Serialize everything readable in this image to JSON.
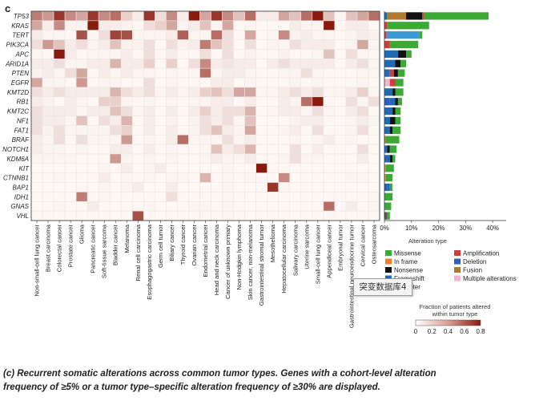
{
  "panel_label": "c",
  "colors": {
    "heat_max": "#8a1a0e",
    "grid_line": "#e8e8e8",
    "Missense": "#3aaa35",
    "In frame": "#f08030",
    "Nonsense": "#111111",
    "Frameshift": "#1e6bb8",
    "Amplification": "#d23c3c",
    "Deletion": "#2a60c0",
    "Fusion": "#b07a2a",
    "Promoter": "#3a9ad8",
    "Multiple alterations": "#f2b6cc",
    "VHL_bar": "#555555"
  },
  "chart_data": [
    {
      "type": "heatmap",
      "rows": [
        "TP53",
        "KRAS",
        "TERT",
        "PIK3CA",
        "APC",
        "ARID1A",
        "PTEN",
        "EGFR",
        "KMT2D",
        "RB1",
        "KMT2C",
        "NF1",
        "FAT1",
        "BRAF",
        "NOTCH1",
        "KDM6A",
        "KIT",
        "CTNNB1",
        "BAP1",
        "IDH1",
        "GNAS",
        "VHL"
      ],
      "columns": [
        "Non-small-cell lung cancer",
        "Breast carcinoma",
        "Colorectal cancer",
        "Prostate cancer",
        "Glioma",
        "Pancreatic cancer",
        "Soft-tissue sarcoma",
        "Bladder cancer",
        "Melanoma",
        "Renal cell carcinoma",
        "Esophagogastric carcinoma",
        "Germ cell tumor",
        "Biliary cancer",
        "Thyroid cancer",
        "Ovarian cancer",
        "Endometrial cancer",
        "Head and neck carcinoma",
        "Cancer of unknown primary",
        "Non-Hodgkin lymphoma",
        "Skin cancer, non-melanoma",
        "Gastrointestinal stromal tumor",
        "Mesothelioma",
        "Hepatocellular carcinoma",
        "Salivary carcinoma",
        "Uterine sarcoma",
        "Small-cell lung cancer",
        "Appendiceal cancer",
        "Embryonal tumor",
        "Gastrointestinal neuroendocrine tumor",
        "Cervical cancer",
        "Osteosarcoma"
      ],
      "values": [
        [
          0.45,
          0.35,
          0.7,
          0.4,
          0.3,
          0.7,
          0.4,
          0.5,
          0.15,
          0.05,
          0.7,
          0.1,
          0.4,
          0.05,
          0.8,
          0.3,
          0.7,
          0.4,
          0.2,
          0.5,
          0.05,
          0.05,
          0.3,
          0.2,
          0.5,
          0.95,
          0.2,
          0.02,
          0.2,
          0.3,
          0.5
        ],
        [
          0.3,
          0.05,
          0.4,
          0.03,
          0.02,
          0.95,
          0.05,
          0.05,
          0.03,
          0.01,
          0.1,
          0.15,
          0.3,
          0.02,
          0.05,
          0.2,
          0.02,
          0.3,
          0.01,
          0.02,
          0.01,
          0.01,
          0.01,
          0.05,
          0.02,
          0.02,
          0.8,
          0.01,
          0.05,
          0.05,
          0.01
        ],
        [
          0.05,
          0.02,
          0.02,
          0.01,
          0.6,
          0.01,
          0.1,
          0.65,
          0.6,
          0.02,
          0.02,
          0.02,
          0.05,
          0.55,
          0.02,
          0.02,
          0.5,
          0.1,
          0.01,
          0.3,
          0.01,
          0.02,
          0.4,
          0.03,
          0.05,
          0.02,
          0.02,
          0.01,
          0.02,
          0.05,
          0.03
        ],
        [
          0.1,
          0.35,
          0.2,
          0.05,
          0.1,
          0.02,
          0.05,
          0.2,
          0.03,
          0.03,
          0.1,
          0.01,
          0.1,
          0.03,
          0.05,
          0.45,
          0.2,
          0.1,
          0.01,
          0.1,
          0.01,
          0.02,
          0.02,
          0.1,
          0.05,
          0.05,
          0.05,
          0.01,
          0.02,
          0.3,
          0.02
        ],
        [
          0.02,
          0.01,
          0.9,
          0.05,
          0.01,
          0.02,
          0.02,
          0.02,
          0.05,
          0.01,
          0.1,
          0.01,
          0.05,
          0.01,
          0.01,
          0.1,
          0.01,
          0.1,
          0.01,
          0.03,
          0.01,
          0.01,
          0.03,
          0.01,
          0.01,
          0.02,
          0.2,
          0.01,
          0.1,
          0.02,
          0.01
        ],
        [
          0.05,
          0.05,
          0.1,
          0.02,
          0.02,
          0.05,
          0.05,
          0.25,
          0.05,
          0.05,
          0.15,
          0.01,
          0.15,
          0.01,
          0.1,
          0.4,
          0.05,
          0.08,
          0.05,
          0.05,
          0.01,
          0.05,
          0.1,
          0.05,
          0.05,
          0.05,
          0.05,
          0.01,
          0.05,
          0.1,
          0.02
        ],
        [
          0.03,
          0.05,
          0.02,
          0.1,
          0.3,
          0.01,
          0.05,
          0.02,
          0.05,
          0.02,
          0.02,
          0.01,
          0.02,
          0.01,
          0.02,
          0.5,
          0.02,
          0.05,
          0.05,
          0.02,
          0.01,
          0.01,
          0.02,
          0.02,
          0.1,
          0.02,
          0.01,
          0.01,
          0.01,
          0.02,
          0.02
        ],
        [
          0.3,
          0.02,
          0.02,
          0.01,
          0.35,
          0.01,
          0.02,
          0.02,
          0.01,
          0.01,
          0.1,
          0.01,
          0.02,
          0.01,
          0.01,
          0.01,
          0.05,
          0.05,
          0.01,
          0.02,
          0.01,
          0.01,
          0.01,
          0.02,
          0.01,
          0.02,
          0.01,
          0.01,
          0.01,
          0.02,
          0.01
        ],
        [
          0.1,
          0.05,
          0.1,
          0.05,
          0.05,
          0.05,
          0.05,
          0.25,
          0.1,
          0.05,
          0.1,
          0.02,
          0.05,
          0.02,
          0.05,
          0.15,
          0.2,
          0.1,
          0.3,
          0.3,
          0.02,
          0.02,
          0.05,
          0.1,
          0.05,
          0.1,
          0.02,
          0.02,
          0.05,
          0.15,
          0.02
        ],
        [
          0.05,
          0.03,
          0.01,
          0.05,
          0.02,
          0.01,
          0.15,
          0.15,
          0.02,
          0.01,
          0.02,
          0.01,
          0.02,
          0.01,
          0.02,
          0.02,
          0.05,
          0.05,
          0.01,
          0.05,
          0.01,
          0.01,
          0.05,
          0.02,
          0.5,
          0.8,
          0.01,
          0.01,
          0.1,
          0.02,
          0.1
        ],
        [
          0.1,
          0.05,
          0.05,
          0.05,
          0.02,
          0.05,
          0.05,
          0.2,
          0.1,
          0.02,
          0.05,
          0.01,
          0.05,
          0.01,
          0.05,
          0.15,
          0.05,
          0.1,
          0.1,
          0.25,
          0.01,
          0.02,
          0.05,
          0.05,
          0.02,
          0.1,
          0.02,
          0.01,
          0.05,
          0.1,
          0.01
        ],
        [
          0.1,
          0.05,
          0.05,
          0.02,
          0.2,
          0.01,
          0.1,
          0.05,
          0.25,
          0.01,
          0.05,
          0.01,
          0.03,
          0.01,
          0.03,
          0.1,
          0.05,
          0.1,
          0.02,
          0.2,
          0.01,
          0.01,
          0.01,
          0.03,
          0.05,
          0.05,
          0.01,
          0.01,
          0.02,
          0.05,
          0.02
        ],
        [
          0.1,
          0.03,
          0.1,
          0.02,
          0.02,
          0.02,
          0.02,
          0.1,
          0.15,
          0.01,
          0.05,
          0.01,
          0.05,
          0.01,
          0.02,
          0.1,
          0.2,
          0.05,
          0.02,
          0.3,
          0.01,
          0.01,
          0.02,
          0.05,
          0.01,
          0.1,
          0.01,
          0.01,
          0.02,
          0.1,
          0.01
        ],
        [
          0.05,
          0.02,
          0.1,
          0.01,
          0.1,
          0.02,
          0.02,
          0.02,
          0.35,
          0.01,
          0.02,
          0.01,
          0.05,
          0.5,
          0.02,
          0.02,
          0.02,
          0.1,
          0.02,
          0.05,
          0.01,
          0.01,
          0.01,
          0.02,
          0.01,
          0.02,
          0.05,
          0.01,
          0.02,
          0.01,
          0.01
        ],
        [
          0.05,
          0.02,
          0.02,
          0.01,
          0.02,
          0.01,
          0.01,
          0.05,
          0.05,
          0.01,
          0.05,
          0.01,
          0.02,
          0.01,
          0.01,
          0.02,
          0.2,
          0.05,
          0.1,
          0.25,
          0.01,
          0.01,
          0.01,
          0.1,
          0.01,
          0.05,
          0.01,
          0.01,
          0.01,
          0.1,
          0.01
        ],
        [
          0.02,
          0.02,
          0.02,
          0.02,
          0.01,
          0.01,
          0.01,
          0.35,
          0.02,
          0.01,
          0.02,
          0.01,
          0.02,
          0.01,
          0.01,
          0.02,
          0.05,
          0.02,
          0.02,
          0.05,
          0.01,
          0.01,
          0.02,
          0.1,
          0.02,
          0.02,
          0.01,
          0.01,
          0.01,
          0.05,
          0.01
        ],
        [
          0.01,
          0.01,
          0.01,
          0.01,
          0.01,
          0.01,
          0.02,
          0.01,
          0.05,
          0.01,
          0.02,
          0.05,
          0.01,
          0.01,
          0.01,
          0.01,
          0.01,
          0.02,
          0.01,
          0.01,
          0.95,
          0.01,
          0.01,
          0.01,
          0.01,
          0.01,
          0.01,
          0.01,
          0.01,
          0.01,
          0.01
        ],
        [
          0.01,
          0.01,
          0.02,
          0.01,
          0.01,
          0.01,
          0.05,
          0.01,
          0.02,
          0.01,
          0.02,
          0.01,
          0.02,
          0.02,
          0.01,
          0.25,
          0.01,
          0.02,
          0.01,
          0.02,
          0.01,
          0.01,
          0.4,
          0.01,
          0.01,
          0.01,
          0.01,
          0.01,
          0.02,
          0.02,
          0.01
        ],
        [
          0.01,
          0.01,
          0.01,
          0.01,
          0.01,
          0.01,
          0.02,
          0.01,
          0.02,
          0.05,
          0.01,
          0.01,
          0.05,
          0.01,
          0.01,
          0.01,
          0.01,
          0.02,
          0.01,
          0.01,
          0.01,
          0.7,
          0.02,
          0.01,
          0.01,
          0.01,
          0.01,
          0.01,
          0.01,
          0.01,
          0.01
        ],
        [
          0.01,
          0.01,
          0.01,
          0.01,
          0.45,
          0.01,
          0.02,
          0.01,
          0.01,
          0.01,
          0.01,
          0.01,
          0.1,
          0.01,
          0.01,
          0.01,
          0.01,
          0.02,
          0.01,
          0.01,
          0.01,
          0.01,
          0.01,
          0.01,
          0.01,
          0.01,
          0.01,
          0.01,
          0.01,
          0.01,
          0.02
        ],
        [
          0.01,
          0.01,
          0.02,
          0.01,
          0.01,
          0.05,
          0.01,
          0.01,
          0.01,
          0.01,
          0.02,
          0.01,
          0.01,
          0.01,
          0.02,
          0.02,
          0.01,
          0.02,
          0.01,
          0.01,
          0.01,
          0.01,
          0.01,
          0.01,
          0.01,
          0.01,
          0.5,
          0.01,
          0.05,
          0.01,
          0.02
        ],
        [
          0.01,
          0.01,
          0.01,
          0.01,
          0.01,
          0.01,
          0.01,
          0.01,
          0.01,
          0.6,
          0.01,
          0.01,
          0.01,
          0.01,
          0.01,
          0.01,
          0.01,
          0.02,
          0.01,
          0.01,
          0.01,
          0.01,
          0.01,
          0.01,
          0.01,
          0.01,
          0.01,
          0.01,
          0.01,
          0.01,
          0.01
        ]
      ],
      "colorbar": {
        "title": "Fraction of patients altered within tumor type",
        "range": [
          0,
          0.8
        ],
        "tick_labels": [
          "0",
          "0.2",
          "0.4",
          "0.6",
          "0.8"
        ]
      }
    },
    {
      "type": "bar",
      "orientation": "horizontal",
      "stacked": true,
      "categories": [
        "TP53",
        "KRAS",
        "TERT",
        "PIK3CA",
        "APC",
        "ARID1A",
        "PTEN",
        "EGFR",
        "KMT2D",
        "RB1",
        "KMT2C",
        "NF1",
        "FAT1",
        "BRAF",
        "NOTCH1",
        "KDM6A",
        "KIT",
        "CTNNB1",
        "BAP1",
        "IDH1",
        "GNAS",
        "VHL"
      ],
      "xlim": [
        0,
        45
      ],
      "x_tick_labels": [
        "0%",
        "10%",
        "20%",
        "30%",
        "40%"
      ],
      "x_ticks": [
        0,
        10,
        20,
        30,
        40
      ],
      "xlabel": "",
      "legend_title": "Alteration type",
      "legend": [
        "Missense",
        "Amplification",
        "In frame",
        "Deletion",
        "Nonsense",
        "Fusion",
        "Frameshift",
        "Multiple alterations",
        "Promoter"
      ],
      "segments": [
        [
          [
            "Frameshift",
            1
          ],
          [
            "Fusion",
            7
          ],
          [
            "Nonsense",
            6
          ],
          [
            "Amplification",
            0.5
          ],
          [
            "Missense",
            24
          ]
        ],
        [
          [
            "Amplification",
            1
          ],
          [
            "Missense",
            15.5
          ]
        ],
        [
          [
            "Amplification",
            0.8
          ],
          [
            "Promoter",
            12.2
          ],
          [
            "Missense",
            1
          ]
        ],
        [
          [
            "Amplification",
            2
          ],
          [
            "Missense",
            10.5
          ]
        ],
        [
          [
            "Frameshift",
            5
          ],
          [
            "Nonsense",
            3
          ],
          [
            "Missense",
            2
          ]
        ],
        [
          [
            "Frameshift",
            4
          ],
          [
            "Nonsense",
            2
          ],
          [
            "Missense",
            2
          ]
        ],
        [
          [
            "Frameshift",
            2
          ],
          [
            "Amplification",
            1.5
          ],
          [
            "Nonsense",
            1.5
          ],
          [
            "Missense",
            2.5
          ]
        ],
        [
          [
            "Multiple alterations",
            2
          ],
          [
            "Amplification",
            2
          ],
          [
            "Missense",
            3
          ]
        ],
        [
          [
            "Frameshift",
            3
          ],
          [
            "Nonsense",
            1
          ],
          [
            "Missense",
            3
          ]
        ],
        [
          [
            "Deletion",
            2
          ],
          [
            "Frameshift",
            2
          ],
          [
            "Nonsense",
            1
          ],
          [
            "Missense",
            1.5
          ]
        ],
        [
          [
            "Frameshift",
            3
          ],
          [
            "Nonsense",
            1
          ],
          [
            "Missense",
            2
          ]
        ],
        [
          [
            "Frameshift",
            2
          ],
          [
            "Nonsense",
            2
          ],
          [
            "Missense",
            2
          ]
        ],
        [
          [
            "Frameshift",
            2
          ],
          [
            "Nonsense",
            1
          ],
          [
            "Missense",
            3
          ]
        ],
        [
          [
            "Fusion",
            0.5
          ],
          [
            "Missense",
            5
          ]
        ],
        [
          [
            "Frameshift",
            1
          ],
          [
            "Nonsense",
            1
          ],
          [
            "Missense",
            2.5
          ]
        ],
        [
          [
            "Frameshift",
            2
          ],
          [
            "Nonsense",
            1
          ],
          [
            "Missense",
            1
          ]
        ],
        [
          [
            "In frame",
            0.5
          ],
          [
            "Missense",
            3
          ]
        ],
        [
          [
            "In frame",
            0.5
          ],
          [
            "Missense",
            2.5
          ]
        ],
        [
          [
            "Deletion",
            1
          ],
          [
            "Frameshift",
            1
          ],
          [
            "Missense",
            1
          ]
        ],
        [
          [
            "Missense",
            3
          ]
        ],
        [
          [
            "Missense",
            2.5
          ]
        ],
        [
          [
            "VHL_bar",
            1
          ],
          [
            "Missense",
            1
          ]
        ]
      ]
    }
  ],
  "caption": {
    "line1": "(c) Recurrent somatic alterations across common tumor types. Genes with a cohort-level alteration",
    "line2": "frequency of ≥5% or a tumor type–specific alteration frequency of ≥30% are displayed."
  },
  "watermark": "突变数据库4"
}
